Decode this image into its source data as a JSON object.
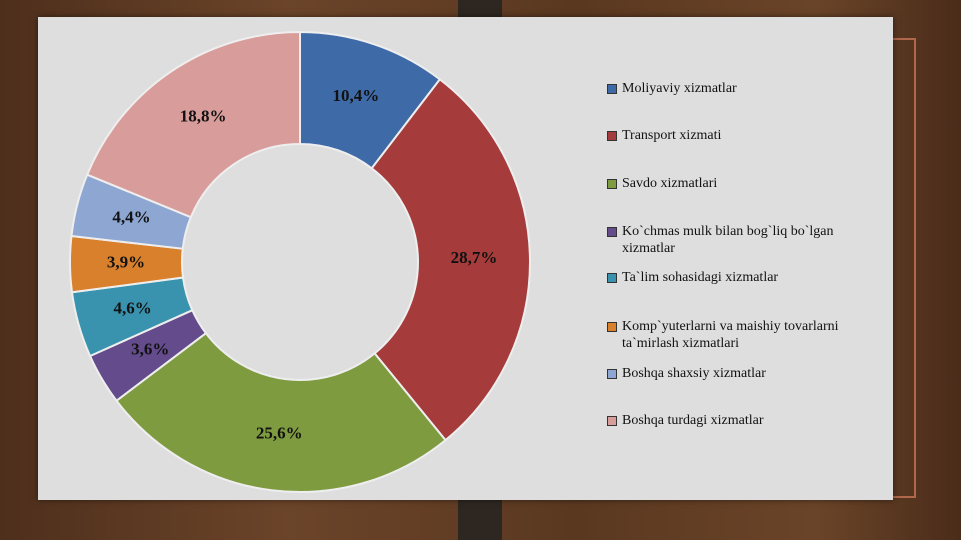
{
  "chart_data": {
    "type": "donut",
    "categories": [
      "Moliyaviy xizmatlar",
      "Transport xizmati",
      "Savdo xizmatlari",
      "Ko`chmas mulk bilan bog`liq bo`lgan xizmatlar",
      "Ta`lim sohasidagi xizmatlar",
      "Komp`yuterlarni va maishiy tovarlarni ta`mirlash xizmatlari",
      "Boshqa shaxsiy xizmatlar",
      "Boshqa turdagi xizmatlar"
    ],
    "values": [
      10.4,
      28.7,
      25.6,
      3.6,
      4.6,
      3.9,
      4.4,
      18.8
    ],
    "value_labels": [
      "10,4%",
      "28,7%",
      "25,6%",
      "3,6%",
      "4,6%",
      "3,9%",
      "4,4%",
      "18,8%"
    ],
    "colors": [
      "#3f6aa8",
      "#a53c3b",
      "#7f9b40",
      "#634b8c",
      "#3a93ae",
      "#d8802c",
      "#8ea6d2",
      "#d89c9b"
    ],
    "legend": "right"
  }
}
